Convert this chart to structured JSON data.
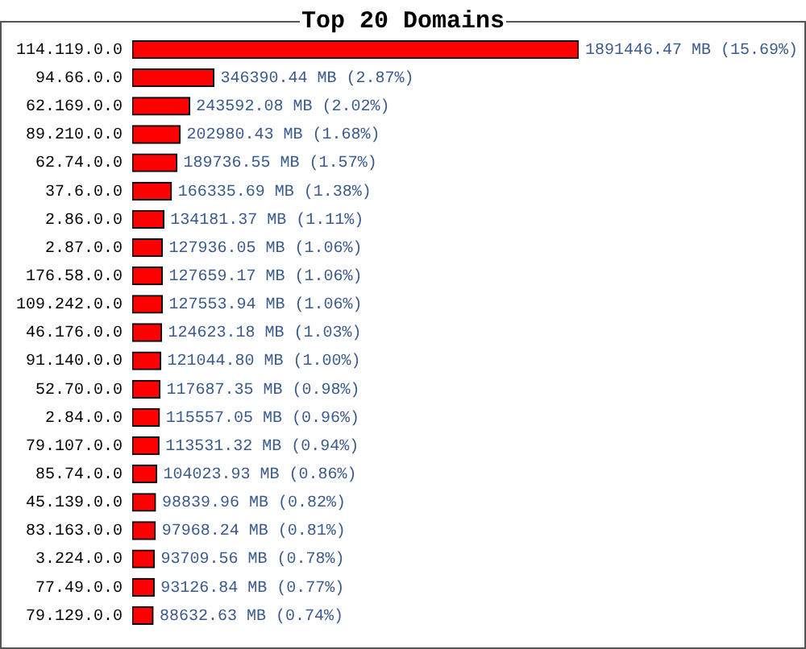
{
  "chart_data": {
    "type": "bar",
    "orientation": "horizontal",
    "title": "Top 20 Domains",
    "categories": [
      "114.119.0.0",
      "94.66.0.0",
      "62.169.0.0",
      "89.210.0.0",
      "62.74.0.0",
      "37.6.0.0",
      "2.86.0.0",
      "2.87.0.0",
      "176.58.0.0",
      "109.242.0.0",
      "46.176.0.0",
      "91.140.0.0",
      "52.70.0.0",
      "2.84.0.0",
      "79.107.0.0",
      "85.74.0.0",
      "45.139.0.0",
      "83.163.0.0",
      "3.224.0.0",
      "77.49.0.0",
      "79.129.0.0"
    ],
    "values": [
      1891446.47,
      346390.44,
      243592.08,
      202980.43,
      189736.55,
      166335.69,
      134181.37,
      127936.05,
      127659.17,
      127553.94,
      124623.18,
      121044.8,
      117687.35,
      115557.05,
      113531.32,
      104023.93,
      98839.96,
      97968.24,
      93709.56,
      93126.84,
      88632.63
    ],
    "value_labels": [
      "1891446.47 MB (15.69%)",
      "346390.44 MB (2.87%)",
      "243592.08 MB (2.02%)",
      "202980.43 MB (1.68%)",
      "189736.55 MB (1.57%)",
      "166335.69 MB (1.38%)",
      "134181.37 MB (1.11%)",
      "127936.05 MB (1.06%)",
      "127659.17 MB (1.06%)",
      "127553.94 MB (1.06%)",
      "124623.18 MB (1.03%)",
      "121044.80 MB (1.00%)",
      "117687.35 MB (0.98%)",
      "115557.05 MB (0.96%)",
      "113531.32 MB (0.94%)",
      "104023.93 MB (0.86%)",
      "98839.96 MB (0.82%)",
      "97968.24 MB (0.81%)",
      "93709.56 MB (0.78%)",
      "93126.84 MB (0.77%)",
      "88632.63 MB (0.74%)"
    ],
    "color": "#ff0000",
    "tick_labels": "y"
  }
}
